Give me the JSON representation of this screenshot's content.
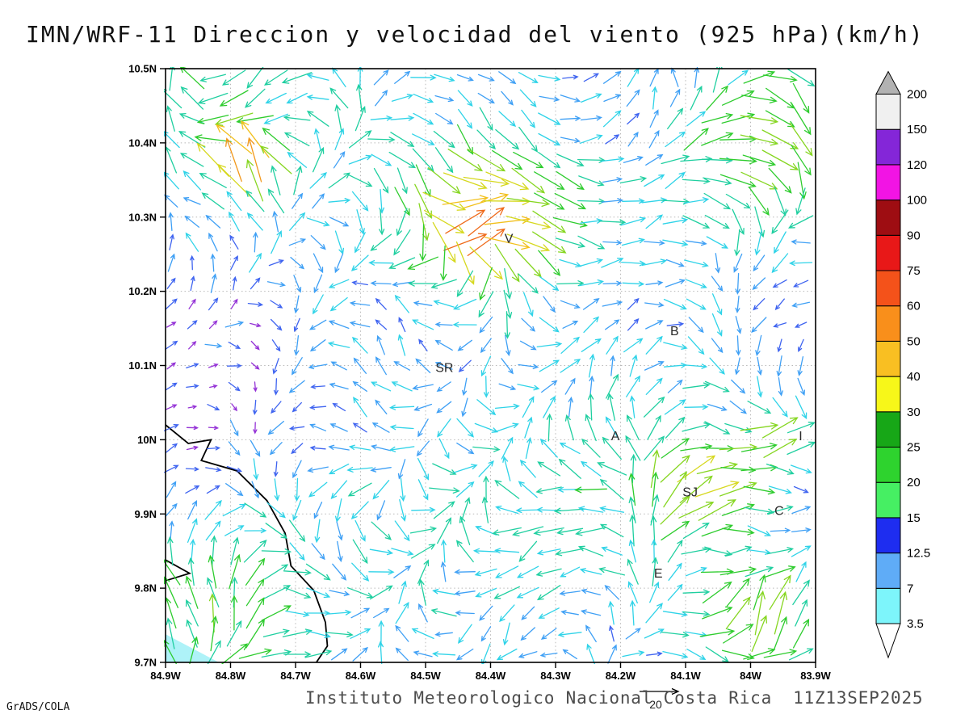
{
  "title": "IMN/WRF-11 Direccion y velocidad del viento (925 hPa)(km/h)",
  "footer": {
    "institute": "Instituto Meteorologico Nacional Costa Rica",
    "datetime": "11Z13SEP2025",
    "credit": "GrADS/COLA"
  },
  "chart_data": {
    "type": "vector-field-map",
    "title": "IMN/WRF-11 Direccion y velocidad del viento (925 hPa)(km/h)",
    "units": "km/h",
    "level": "925 hPa",
    "x_ticks": [
      "84.9W",
      "84.8W",
      "84.7W",
      "84.6W",
      "84.5W",
      "84.4W",
      "84.3W",
      "84.2W",
      "84.1W",
      "84W",
      "83.9W"
    ],
    "y_ticks": [
      "10.5N",
      "10.4N",
      "10.3N",
      "10.2N",
      "10.1N",
      "10N",
      "9.9N",
      "9.8N",
      "9.7N"
    ],
    "lon_w_range": [
      84.9,
      83.9
    ],
    "lat_range": [
      9.7,
      10.5
    ],
    "grid_interval": 0.1,
    "reference_vector": {
      "label": "20",
      "speed": 20
    },
    "stations": [
      {
        "label": "V",
        "lon_w": 84.372,
        "lat": 10.271
      },
      {
        "label": "SR",
        "lon_w": 84.471,
        "lat": 10.097
      },
      {
        "label": "B",
        "lon_w": 84.117,
        "lat": 10.146
      },
      {
        "label": "A",
        "lon_w": 84.208,
        "lat": 10.005
      },
      {
        "label": "SJ",
        "lon_w": 84.093,
        "lat": 9.929
      },
      {
        "label": "C",
        "lon_w": 83.956,
        "lat": 9.904
      },
      {
        "label": "E",
        "lon_w": 84.142,
        "lat": 9.82
      },
      {
        "label": "I",
        "lon_w": 83.923,
        "lat": 10.005
      }
    ],
    "colorbar": {
      "levels": [
        "3.5",
        "7",
        "12.5",
        "15",
        "20",
        "25",
        "30",
        "40",
        "50",
        "60",
        "75",
        "90",
        "100",
        "120",
        "150",
        "200"
      ],
      "colors": [
        "#7df5fb",
        "#5facf7",
        "#1e2df0",
        "#46ef63",
        "#2ed32e",
        "#17a717",
        "#f7f719",
        "#f9bf22",
        "#f98f1b",
        "#f4521a",
        "#e81818",
        "#9e0d12",
        "#f214e4",
        "#8426d8",
        "#f0f0f0"
      ],
      "under_color": "#ffffff",
      "over_color": "#b2b2b2"
    },
    "arrow_speed_colors": {
      "thresholds": [
        5,
        8,
        11,
        14,
        18,
        22,
        27,
        33,
        42,
        52,
        65,
        80,
        100
      ],
      "colors": [
        "#9432d6",
        "#3f64f0",
        "#3fa0f5",
        "#2fd3e8",
        "#1fcfa0",
        "#2ecc2e",
        "#86d621",
        "#d6d81e",
        "#f2c01c",
        "#f2981c",
        "#ef6a1a",
        "#e82222",
        "#c0128c"
      ],
      "over": "#f214c4"
    },
    "coastline": [
      [
        84.9,
        10.02
      ],
      [
        84.865,
        9.995
      ],
      [
        84.83,
        10.0
      ],
      [
        84.845,
        9.972
      ],
      [
        84.79,
        9.958
      ],
      [
        84.744,
        9.918
      ],
      [
        84.716,
        9.874
      ],
      [
        84.707,
        9.83
      ],
      [
        84.672,
        9.797
      ],
      [
        84.654,
        9.754
      ],
      [
        84.651,
        9.722
      ],
      [
        84.668,
        9.7
      ]
    ],
    "coast_spike": [
      [
        84.9,
        9.838
      ],
      [
        84.863,
        9.82
      ],
      [
        84.9,
        9.81
      ]
    ],
    "sea_patch": {
      "points": [
        [
          84.9,
          9.738
        ],
        [
          84.9,
          9.7
        ],
        [
          84.818,
          9.7
        ]
      ],
      "color": "#aef2f8"
    },
    "wind_field": {
      "cols": 31,
      "rows": 29,
      "x0": 212,
      "dx": 26,
      "y0": 96,
      "dy": 25.5,
      "base_speed": 8.5,
      "speed_amp": 7.5,
      "noise_amp": 6,
      "boosts": [
        {
          "x": 0.5,
          "y": 0.24,
          "r": 0.11,
          "add": 24,
          "ang": 80,
          "w": 0.75,
          "spread": 260
        },
        {
          "x": 0.485,
          "y": 0.27,
          "r": 0.035,
          "add": 46,
          "ang": 75,
          "w": 0.85,
          "spread": 0
        },
        {
          "x": 0.115,
          "y": 0.14,
          "r": 0.05,
          "add": 34,
          "ang": 85,
          "w": 0.8,
          "spread": 120
        },
        {
          "x": 0.86,
          "y": 0.71,
          "r": 0.09,
          "add": 16,
          "ang": 38,
          "w": 0.7,
          "spread": 0
        },
        {
          "x": 0.94,
          "y": 0.13,
          "r": 0.13,
          "add": 10,
          "ang": 5,
          "w": 0.75,
          "spread": 0
        },
        {
          "x": 0.07,
          "y": 0.88,
          "r": 0.15,
          "add": 9,
          "ang": 168,
          "w": 0.6,
          "spread": 0
        },
        {
          "x": 0.5,
          "y": 0.02,
          "r": 0.25,
          "add": 4,
          "ang": 15,
          "w": 0.45,
          "spread": 0
        },
        {
          "x": 0.93,
          "y": 0.93,
          "r": 0.08,
          "add": 16,
          "ang": 150,
          "w": 0.6,
          "spread": 0
        },
        {
          "x": 0.97,
          "y": 0.62,
          "r": 0.05,
          "add": 18,
          "ang": 120,
          "w": 0.6,
          "spread": 0
        }
      ],
      "dips": [
        {
          "x": 0.42,
          "y": 0.47,
          "r2": 0.025,
          "amt": 6
        },
        {
          "x": 0.68,
          "y": 0.42,
          "r2": 0.02,
          "amt": 6
        },
        {
          "x": 0.55,
          "y": 0.6,
          "r2": 0.02,
          "amt": 5
        }
      ]
    }
  }
}
